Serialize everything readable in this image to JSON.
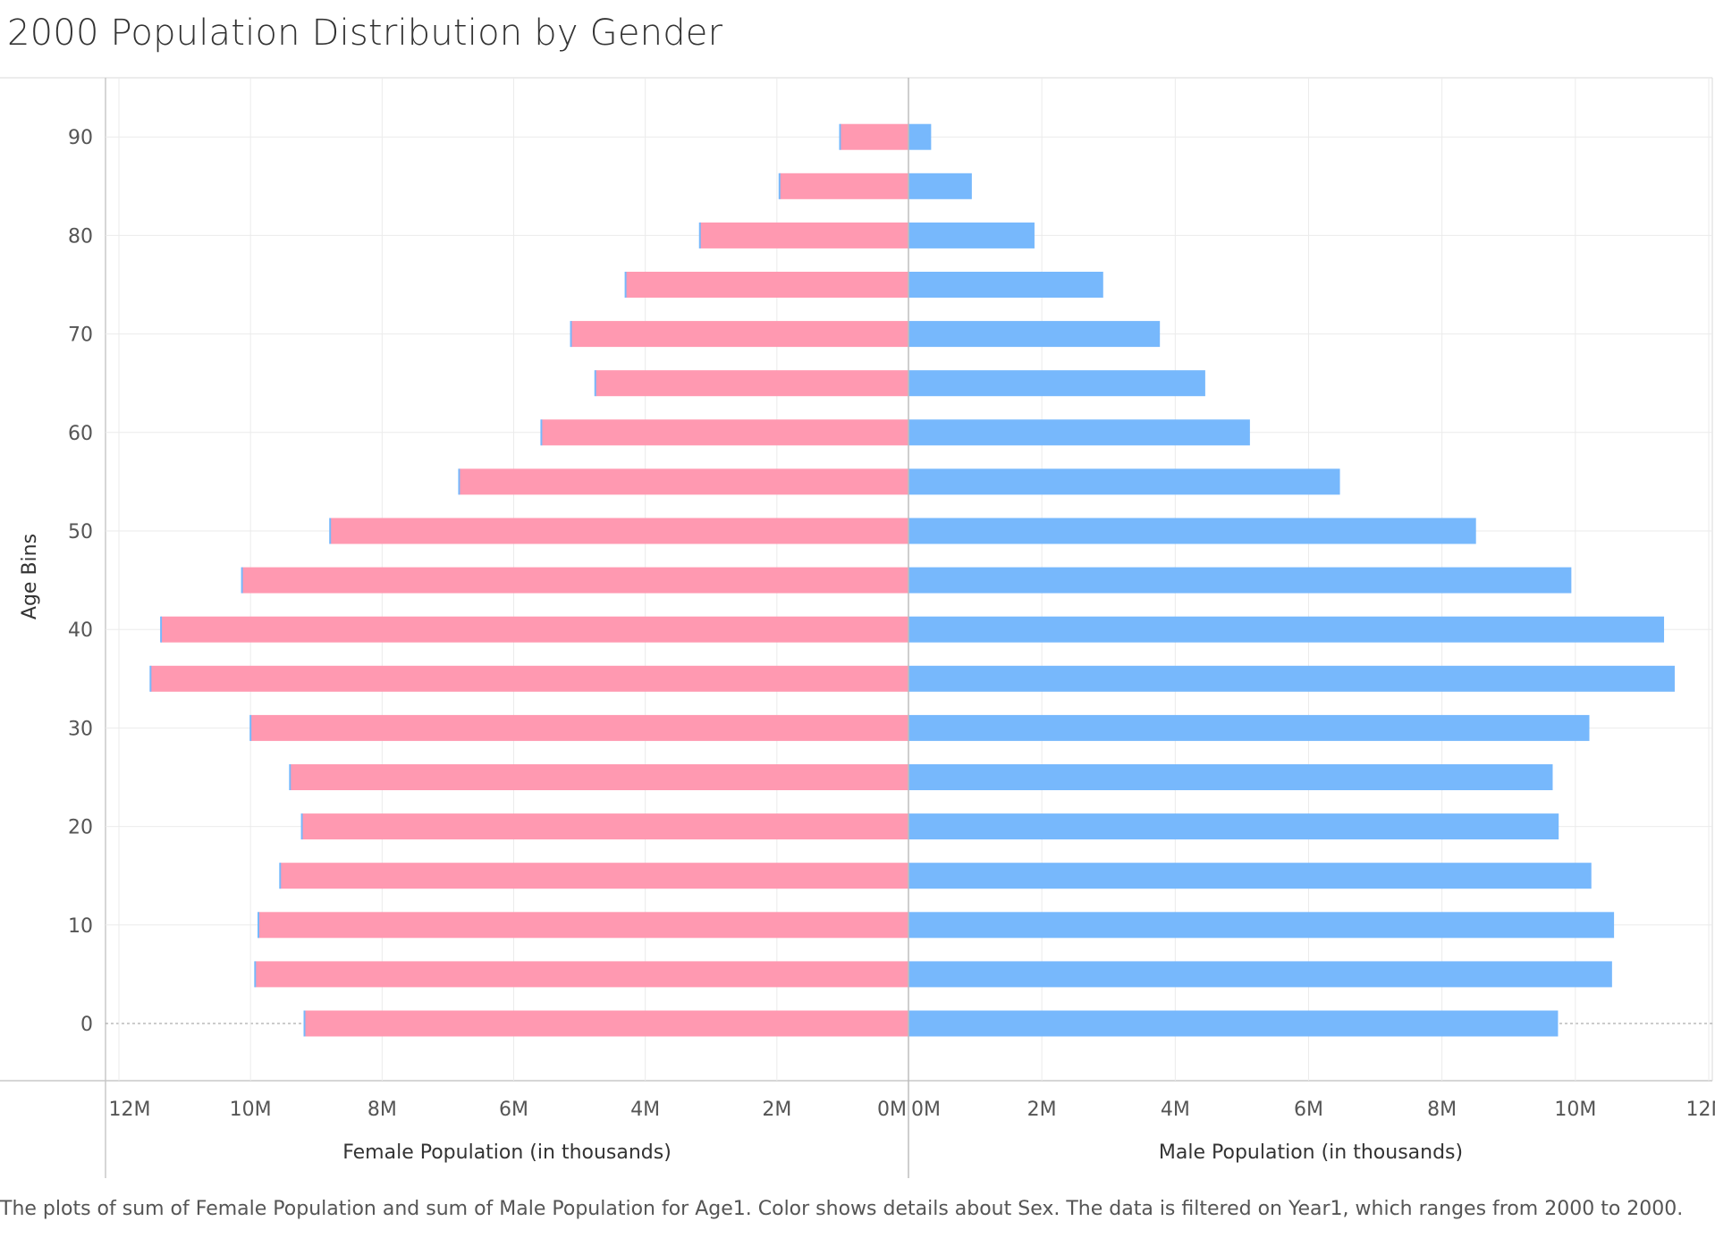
{
  "title": "2000 Population Distribution by Gender",
  "caption": "The plots of sum of Female Population and sum of Male Population for Age1.  Color shows details about Sex. The data is filtered on Year1, which ranges from 2000 to 2000.",
  "colors": {
    "female": "#ff99b1",
    "male": "#77b8fc",
    "female_edge": "#77b8fc",
    "grid": "#ebebeb",
    "axis": "#c8c8c8"
  },
  "chart_data": {
    "type": "bar",
    "orientation": "horizontal",
    "ylabel": "Age Bins",
    "y_ticks": [
      0,
      10,
      20,
      30,
      40,
      50,
      60,
      70,
      80,
      90
    ],
    "categories": [
      0,
      5,
      10,
      15,
      20,
      25,
      30,
      35,
      40,
      45,
      50,
      55,
      60,
      65,
      70,
      75,
      80,
      85,
      90
    ],
    "female": {
      "axis_label": "Female Population (in thousands)",
      "xlim": [
        12000000,
        0
      ],
      "ticks": [
        "12M",
        "10M",
        "8M",
        "6M",
        "4M",
        "2M",
        "0M"
      ],
      "values": [
        9180000,
        9930000,
        9880000,
        9550000,
        9220000,
        9400000,
        10000000,
        11520000,
        11360000,
        10130000,
        8790000,
        6830000,
        5580000,
        4760000,
        5130000,
        4300000,
        3170000,
        1960000,
        1040000
      ]
    },
    "male": {
      "axis_label": "Male Population (in thousands)",
      "xlim": [
        0,
        12000000
      ],
      "ticks": [
        "0M",
        "2M",
        "4M",
        "6M",
        "8M",
        "10M",
        "12M"
      ],
      "values": [
        9740000,
        10550000,
        10580000,
        10240000,
        9750000,
        9660000,
        10210000,
        11490000,
        11330000,
        9940000,
        8510000,
        6470000,
        5120000,
        4450000,
        3770000,
        2920000,
        1890000,
        950000,
        340000
      ]
    },
    "grid": true
  }
}
